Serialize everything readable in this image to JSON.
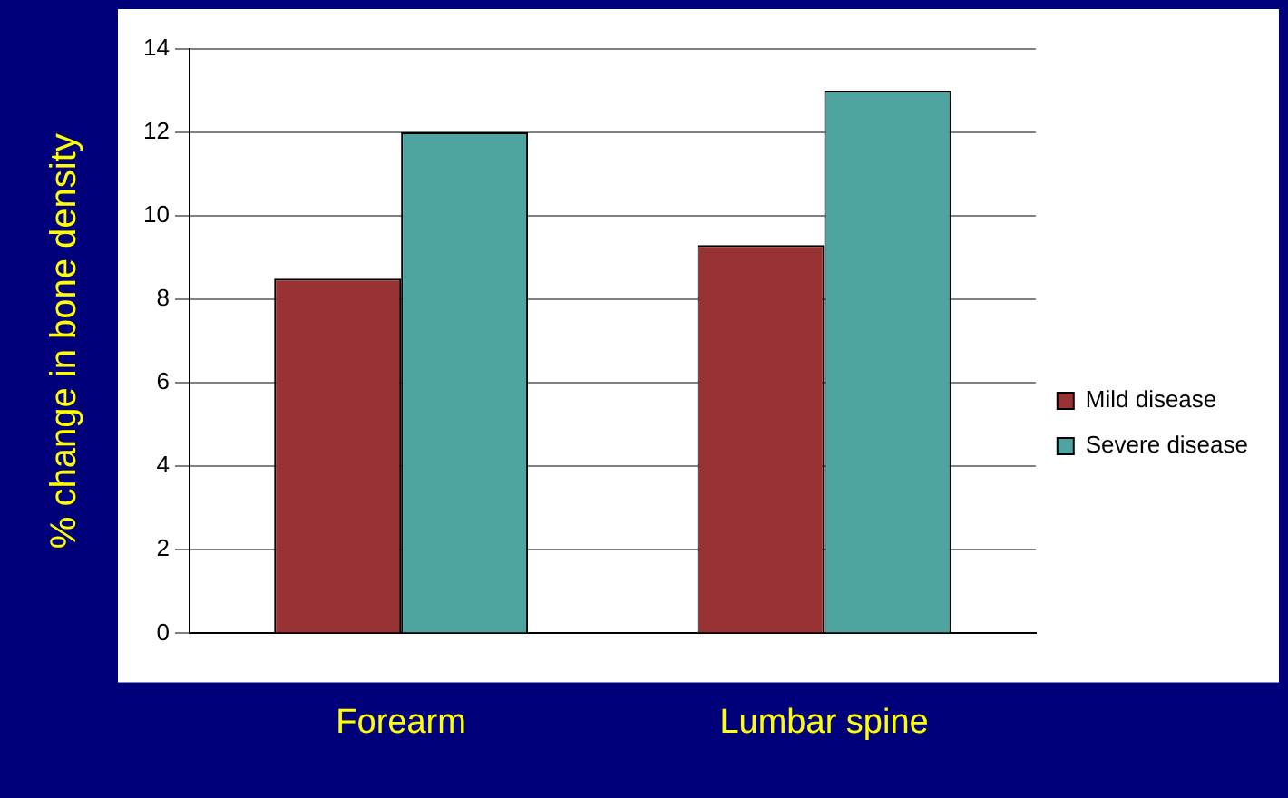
{
  "chart_data": {
    "type": "bar",
    "ylabel": "% change in bone density",
    "categories": [
      "Forearm",
      "Lumbar spine"
    ],
    "series": [
      {
        "name": "Mild disease",
        "color": "#993333",
        "values": [
          8.5,
          9.3
        ]
      },
      {
        "name": "Severe disease",
        "color": "#4fa3a0",
        "values": [
          12,
          13
        ]
      }
    ],
    "ylim": [
      0,
      14
    ],
    "yticks": [
      0,
      2,
      4,
      6,
      8,
      10,
      12,
      14
    ],
    "grid": "y",
    "legend": "right"
  }
}
